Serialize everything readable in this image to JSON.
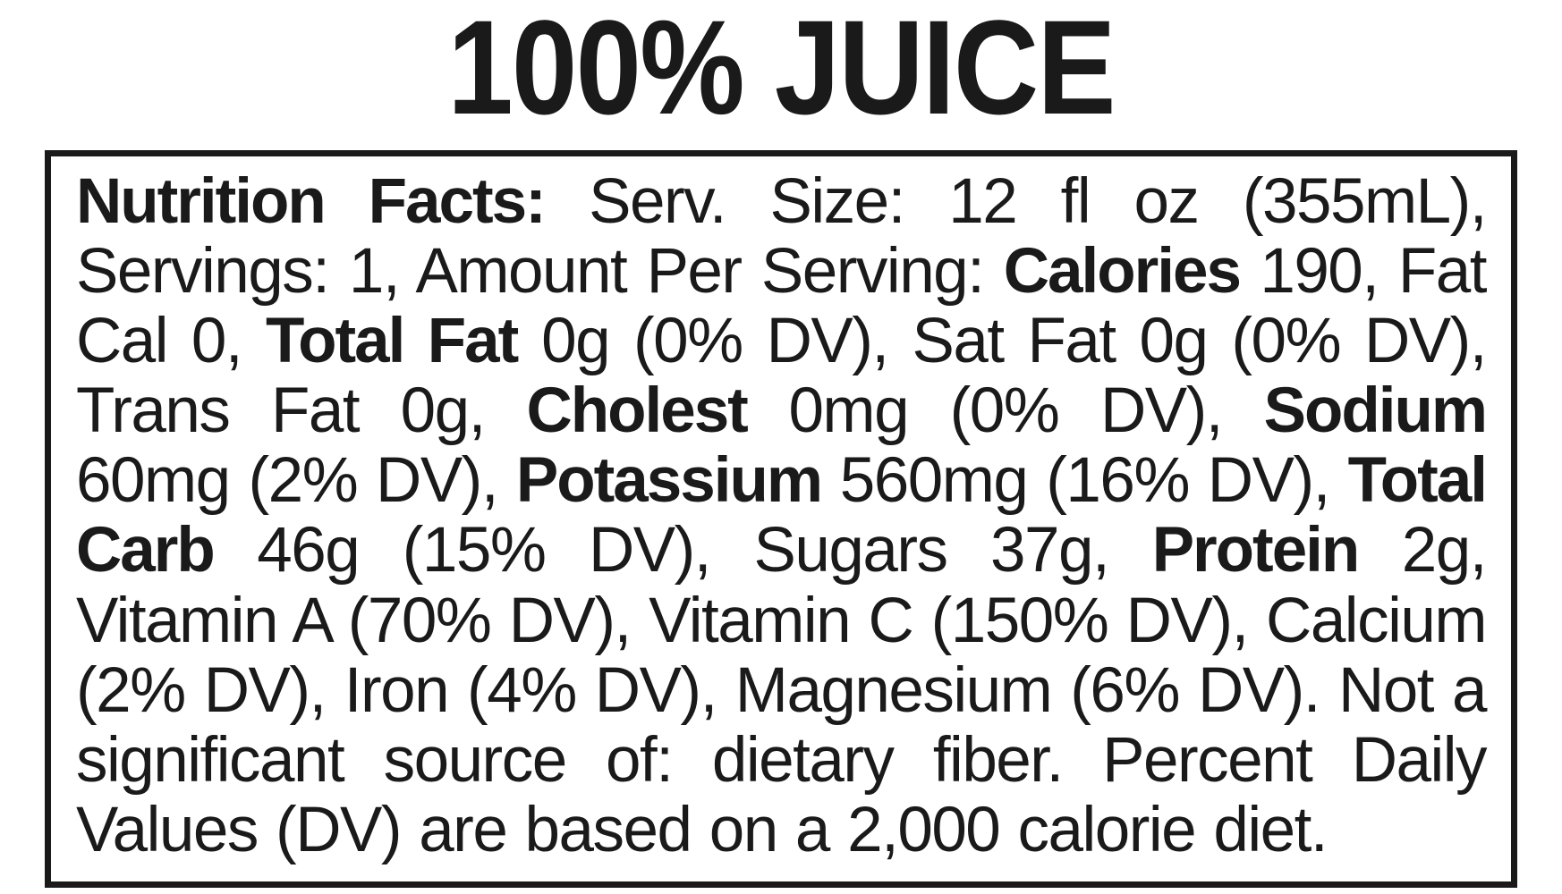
{
  "headline": "100% JUICE",
  "label": "Nutrition Facts:",
  "serv_size_label": "Serv. Size:",
  "serv_size_value": "12 fl oz (355mL),",
  "servings_label": "Servings:",
  "servings_value": "1,",
  "amount_label": "Amount Per Serving:",
  "calories_label": "Calories",
  "calories_value": "190,",
  "fat_cal": "Fat Cal 0,",
  "total_fat_label": "Total Fat",
  "total_fat_value": "0g (0% DV),",
  "sat_fat": "Sat Fat 0g (0% DV),",
  "trans_fat": "Trans Fat 0g,",
  "cholest_label": "Cholest",
  "cholest_value": "0mg (0% DV),",
  "sodium_label": "Sodium",
  "sodium_value": "60mg (2% DV),",
  "potassium_label": "Potassium",
  "potassium_value": "560mg (16% DV),",
  "total_carb_label": "Total Carb",
  "total_carb_value": "46g (15% DV),",
  "sugars": "Sugars 37g,",
  "protein_label": "Protein",
  "protein_value": "2g,",
  "vit_a": "Vitamin A (70% DV),",
  "vit_c": "Vitamin C (150% DV),",
  "calcium": "Calcium (2% DV),",
  "iron": "Iron (4% DV),",
  "magnesium": "Magnesium (6% DV).",
  "not_sig": "Not a significant source of: dietary fiber.",
  "dv_note": "Percent Daily Values (DV) are based on a 2,000 calorie diet.",
  "colors": {
    "fg": "#1a1a1a",
    "bg": "#ffffff"
  }
}
